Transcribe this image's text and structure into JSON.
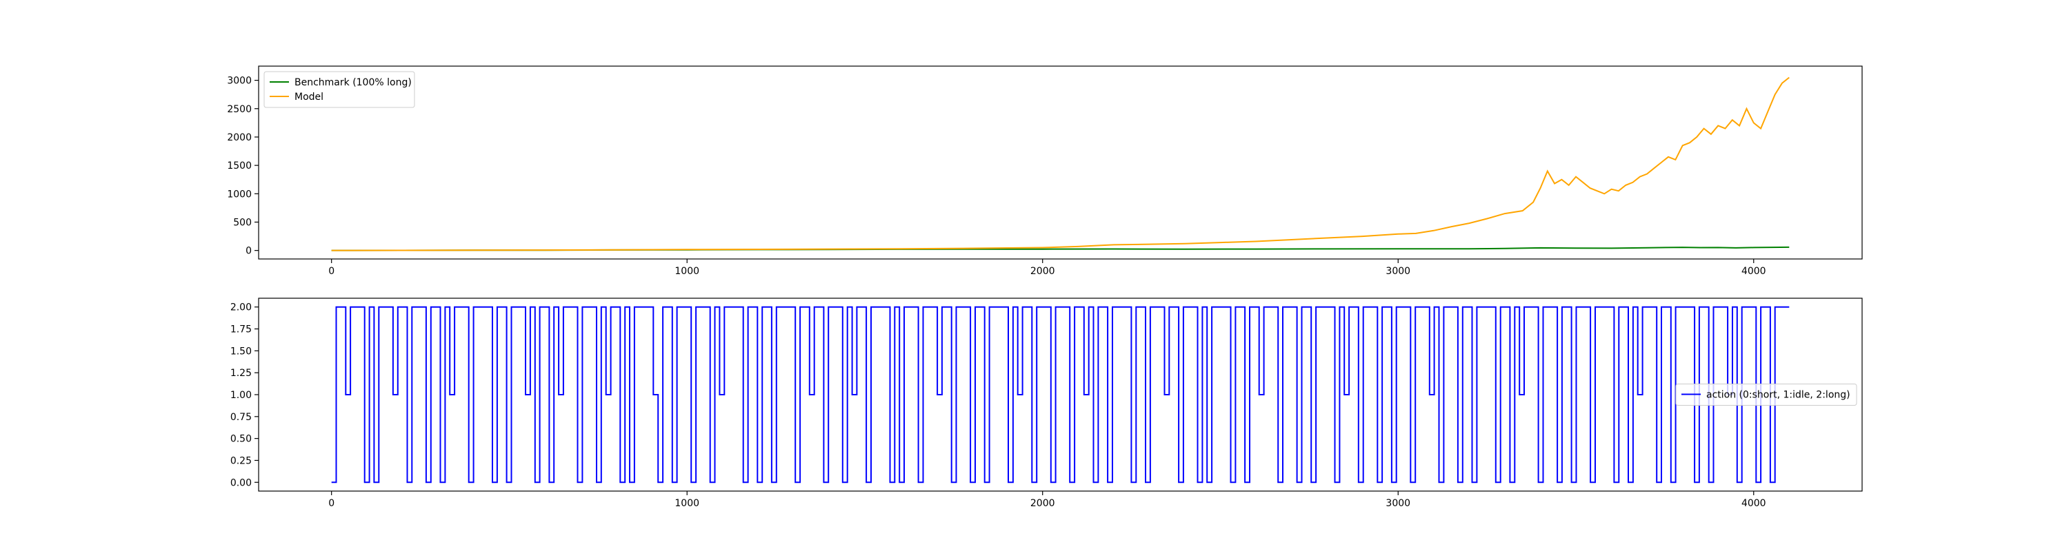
{
  "chart_data": [
    {
      "type": "line",
      "title": "",
      "xlabel": "",
      "ylabel": "",
      "xlim": [
        -205,
        4305
      ],
      "ylim": [
        -150,
        3250
      ],
      "xticks": [
        0,
        1000,
        2000,
        3000,
        4000
      ],
      "xtick_labels": [
        "0",
        "1000",
        "2000",
        "3000",
        "4000"
      ],
      "yticks": [
        0,
        500,
        1000,
        1500,
        2000,
        2500,
        3000
      ],
      "ytick_labels": [
        "0",
        "500",
        "1000",
        "1500",
        "2000",
        "2500",
        "3000"
      ],
      "grid": false,
      "legend_position": "upper-left",
      "series": [
        {
          "name": "Benchmark (100% long)",
          "color": "#008000",
          "x": [
            0,
            200,
            400,
            600,
            800,
            1000,
            1200,
            1400,
            1600,
            1800,
            2000,
            2200,
            2400,
            2600,
            2800,
            3000,
            3200,
            3300,
            3400,
            3500,
            3600,
            3700,
            3800,
            3850,
            3900,
            3950,
            4000,
            4050,
            4100
          ],
          "y": [
            1,
            2,
            4,
            6,
            9,
            12,
            15,
            18,
            21,
            22,
            24,
            26,
            24,
            25,
            27,
            28,
            30,
            35,
            45,
            42,
            40,
            48,
            55,
            50,
            52,
            46,
            52,
            55,
            58
          ]
        },
        {
          "name": "Model",
          "color": "#FFA500",
          "x": [
            0,
            200,
            400,
            600,
            800,
            1000,
            1200,
            1400,
            1600,
            1800,
            2000,
            2100,
            2200,
            2300,
            2400,
            2500,
            2600,
            2700,
            2800,
            2900,
            3000,
            3050,
            3100,
            3150,
            3200,
            3250,
            3300,
            3350,
            3380,
            3400,
            3420,
            3440,
            3460,
            3480,
            3500,
            3520,
            3540,
            3560,
            3580,
            3600,
            3620,
            3640,
            3660,
            3680,
            3700,
            3720,
            3740,
            3760,
            3780,
            3800,
            3820,
            3840,
            3860,
            3880,
            3900,
            3920,
            3940,
            3960,
            3980,
            4000,
            4020,
            4040,
            4060,
            4080,
            4100
          ],
          "y": [
            0,
            2,
            4,
            7,
            11,
            16,
            20,
            25,
            30,
            38,
            50,
            70,
            100,
            110,
            120,
            140,
            160,
            190,
            220,
            250,
            290,
            300,
            350,
            420,
            480,
            560,
            650,
            700,
            850,
            1100,
            1400,
            1180,
            1250,
            1150,
            1300,
            1200,
            1100,
            1050,
            1000,
            1080,
            1050,
            1150,
            1200,
            1300,
            1350,
            1450,
            1550,
            1650,
            1600,
            1850,
            1900,
            2000,
            2150,
            2050,
            2200,
            2150,
            2300,
            2200,
            2500,
            2250,
            2150,
            2450,
            2750,
            2950,
            3050
          ]
        }
      ]
    },
    {
      "type": "line",
      "title": "",
      "xlabel": "",
      "ylabel": "",
      "xlim": [
        -205,
        4305
      ],
      "ylim": [
        -0.1,
        2.1
      ],
      "xticks": [
        0,
        1000,
        2000,
        3000,
        4000
      ],
      "xtick_labels": [
        "0",
        "1000",
        "2000",
        "3000",
        "4000"
      ],
      "yticks": [
        0,
        0.25,
        0.5,
        0.75,
        1.0,
        1.25,
        1.5,
        1.75,
        2.0
      ],
      "ytick_labels": [
        "0.00",
        "0.25",
        "0.50",
        "0.75",
        "1.00",
        "1.25",
        "1.50",
        "1.75",
        "2.00"
      ],
      "grid": false,
      "legend_position": "center-right",
      "drawstyle": "steps",
      "series": [
        {
          "name": "action (0:short, 1:idle, 2:long)",
          "color": "#0000FF",
          "x_start": 0,
          "x_end": 4100,
          "values": [
            0,
            2,
            2,
            1,
            2,
            2,
            2,
            0,
            2,
            0,
            2,
            2,
            2,
            1,
            2,
            2,
            0,
            2,
            2,
            2,
            0,
            2,
            2,
            0,
            2,
            1,
            2,
            2,
            2,
            0,
            2,
            2,
            2,
            2,
            0,
            2,
            2,
            0,
            2,
            2,
            2,
            1,
            2,
            0,
            2,
            2,
            0,
            2,
            1,
            2,
            2,
            2,
            0,
            2,
            2,
            2,
            0,
            2,
            1,
            2,
            2,
            0,
            2,
            0,
            2,
            2,
            2,
            2,
            1,
            0,
            2,
            2,
            0,
            2,
            2,
            2,
            0,
            2,
            2,
            2,
            0,
            2,
            1,
            2,
            2,
            2,
            2,
            0,
            2,
            2,
            0,
            2,
            2,
            0,
            2,
            2,
            2,
            2,
            0,
            2,
            2,
            1,
            2,
            2,
            0,
            2,
            2,
            2,
            0,
            2,
            1,
            2,
            2,
            0,
            2,
            2,
            2,
            2,
            0,
            2,
            0,
            2,
            2,
            2,
            0,
            2,
            2,
            2,
            1,
            2,
            2,
            0,
            2,
            2,
            2,
            0,
            2,
            2,
            0,
            2,
            2,
            2,
            2,
            0,
            2,
            1,
            2,
            2,
            0,
            2,
            2,
            2,
            0,
            2,
            2,
            2,
            0,
            2,
            2,
            1,
            2,
            0,
            2,
            2,
            0,
            2,
            2,
            2,
            2,
            0,
            2,
            2,
            0,
            2,
            2,
            2,
            1,
            2,
            2,
            0,
            2,
            2,
            2,
            0,
            2,
            0,
            2,
            2,
            2,
            2,
            0,
            2,
            2,
            0,
            2,
            2,
            1,
            2,
            2,
            2,
            0,
            2,
            2,
            2,
            0,
            2,
            2,
            0,
            2,
            2,
            2,
            2,
            0,
            2,
            1,
            2,
            2,
            0,
            2,
            2,
            2,
            0,
            2,
            2,
            0,
            2,
            2,
            2,
            0,
            2,
            2,
            2,
            1,
            2,
            0,
            2,
            2,
            2,
            0,
            2,
            2,
            0,
            2,
            2,
            2,
            2,
            0,
            2,
            2,
            0,
            2,
            1,
            2,
            2,
            2,
            0,
            2,
            2,
            2,
            0,
            2,
            2,
            0,
            2,
            2,
            2,
            0,
            2,
            2,
            2,
            2,
            0,
            2,
            2,
            0,
            2,
            1,
            2,
            2,
            2,
            0,
            2,
            2,
            0,
            2,
            2,
            2,
            2,
            0,
            2,
            2,
            0,
            2,
            2,
            2,
            1,
            2,
            0,
            2,
            2,
            2,
            0,
            2,
            2,
            0,
            2,
            2,
            2,
            2
          ]
        }
      ]
    }
  ]
}
